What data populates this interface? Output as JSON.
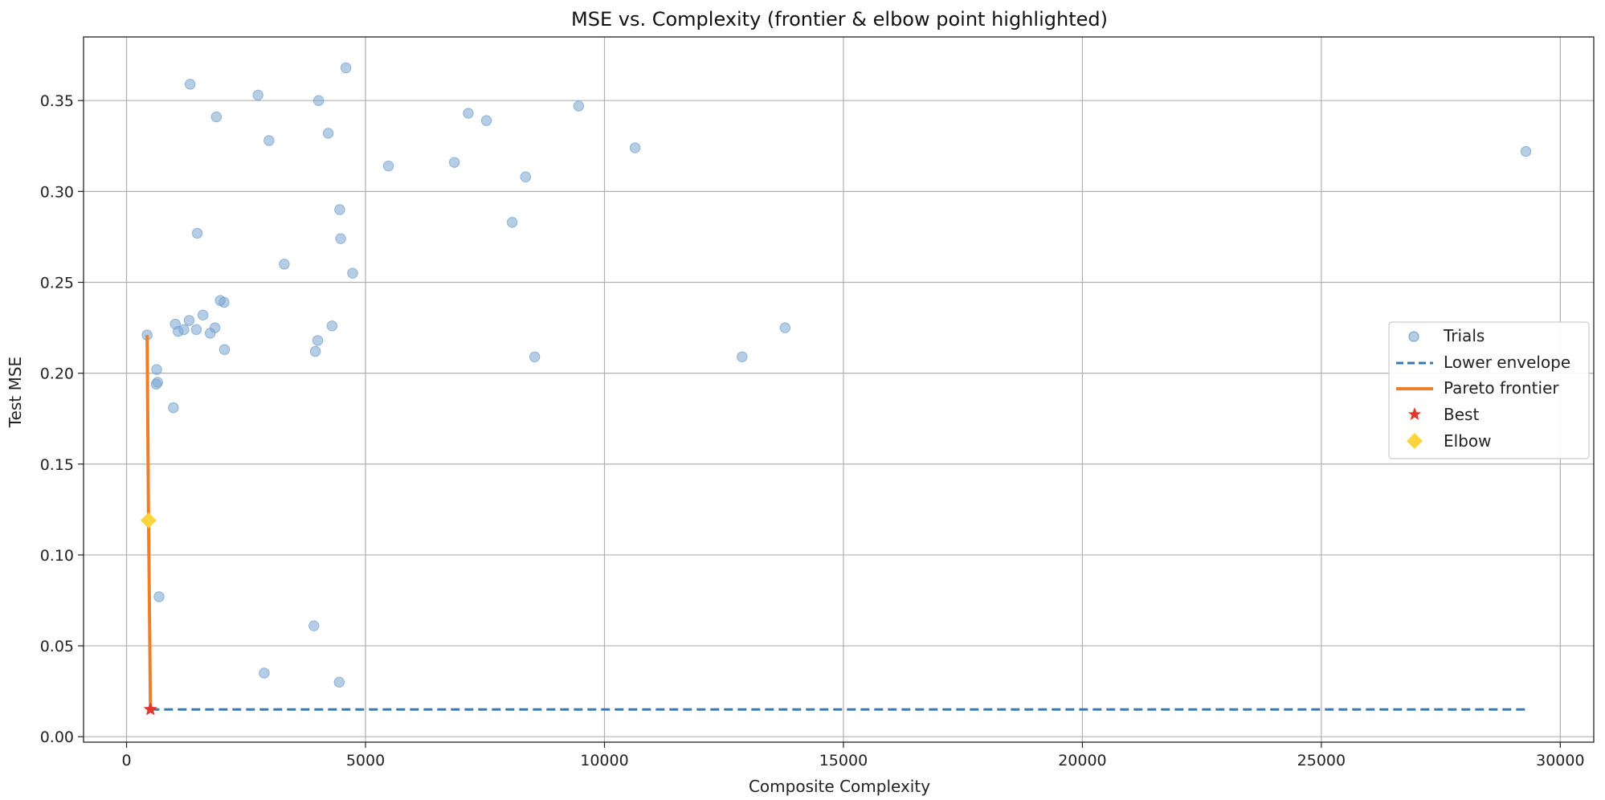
{
  "chart_data": {
    "type": "scatter",
    "title": "MSE vs. Complexity (frontier & elbow point highlighted)",
    "xlabel": "Composite Complexity",
    "ylabel": "Test MSE",
    "xlim": [
      -900,
      30700
    ],
    "ylim": [
      -0.003,
      0.385
    ],
    "xticks": [
      0,
      5000,
      10000,
      15000,
      20000,
      25000,
      30000
    ],
    "xtick_labels": [
      "0",
      "5000",
      "10000",
      "15000",
      "20000",
      "25000",
      "30000"
    ],
    "yticks": [
      0.0,
      0.05,
      0.1,
      0.15,
      0.2,
      0.25,
      0.3,
      0.35
    ],
    "ytick_labels": [
      "0.00",
      "0.05",
      "0.10",
      "0.15",
      "0.20",
      "0.25",
      "0.30",
      "0.35"
    ],
    "grid": true,
    "legend_position": "center-right",
    "colors": {
      "trials": "#7aa6cf",
      "envelope": "#3a78b0",
      "frontier": "#f07e26",
      "best": "#e0382b",
      "elbow": "#fcd43e",
      "grid": "#b0b0b0",
      "axes": "#222222"
    },
    "series": [
      {
        "name": "Trials",
        "kind": "scatter",
        "points": [
          [
            430,
            0.221
          ],
          [
            630,
            0.202
          ],
          [
            650,
            0.195
          ],
          [
            620,
            0.194
          ],
          [
            680,
            0.077
          ],
          [
            980,
            0.181
          ],
          [
            1020,
            0.227
          ],
          [
            1080,
            0.223
          ],
          [
            1200,
            0.224
          ],
          [
            1310,
            0.229
          ],
          [
            1330,
            0.359
          ],
          [
            1460,
            0.224
          ],
          [
            1480,
            0.277
          ],
          [
            1600,
            0.232
          ],
          [
            1750,
            0.222
          ],
          [
            1850,
            0.225
          ],
          [
            1880,
            0.341
          ],
          [
            1960,
            0.24
          ],
          [
            2040,
            0.239
          ],
          [
            2050,
            0.213
          ],
          [
            2750,
            0.353
          ],
          [
            2880,
            0.035
          ],
          [
            2980,
            0.328
          ],
          [
            3300,
            0.26
          ],
          [
            3920,
            0.061
          ],
          [
            3950,
            0.212
          ],
          [
            4000,
            0.218
          ],
          [
            4020,
            0.35
          ],
          [
            4220,
            0.332
          ],
          [
            4300,
            0.226
          ],
          [
            4450,
            0.03
          ],
          [
            4460,
            0.29
          ],
          [
            4480,
            0.274
          ],
          [
            4590,
            0.368
          ],
          [
            4730,
            0.255
          ],
          [
            5480,
            0.314
          ],
          [
            6860,
            0.316
          ],
          [
            7150,
            0.343
          ],
          [
            7530,
            0.339
          ],
          [
            8070,
            0.283
          ],
          [
            8350,
            0.308
          ],
          [
            8540,
            0.209
          ],
          [
            9460,
            0.347
          ],
          [
            10640,
            0.324
          ],
          [
            12880,
            0.209
          ],
          [
            13780,
            0.225
          ],
          [
            29280,
            0.322
          ]
        ]
      },
      {
        "name": "Lower envelope",
        "kind": "dashed-line",
        "points": [
          [
            500,
            0.015
          ],
          [
            29280,
            0.015
          ]
        ]
      },
      {
        "name": "Pareto frontier",
        "kind": "line",
        "points": [
          [
            430,
            0.221
          ],
          [
            460,
            0.119
          ],
          [
            500,
            0.015
          ]
        ]
      },
      {
        "name": "Best",
        "kind": "star",
        "points": [
          [
            500,
            0.015
          ]
        ]
      },
      {
        "name": "Elbow",
        "kind": "diamond",
        "points": [
          [
            460,
            0.119
          ]
        ]
      }
    ]
  }
}
